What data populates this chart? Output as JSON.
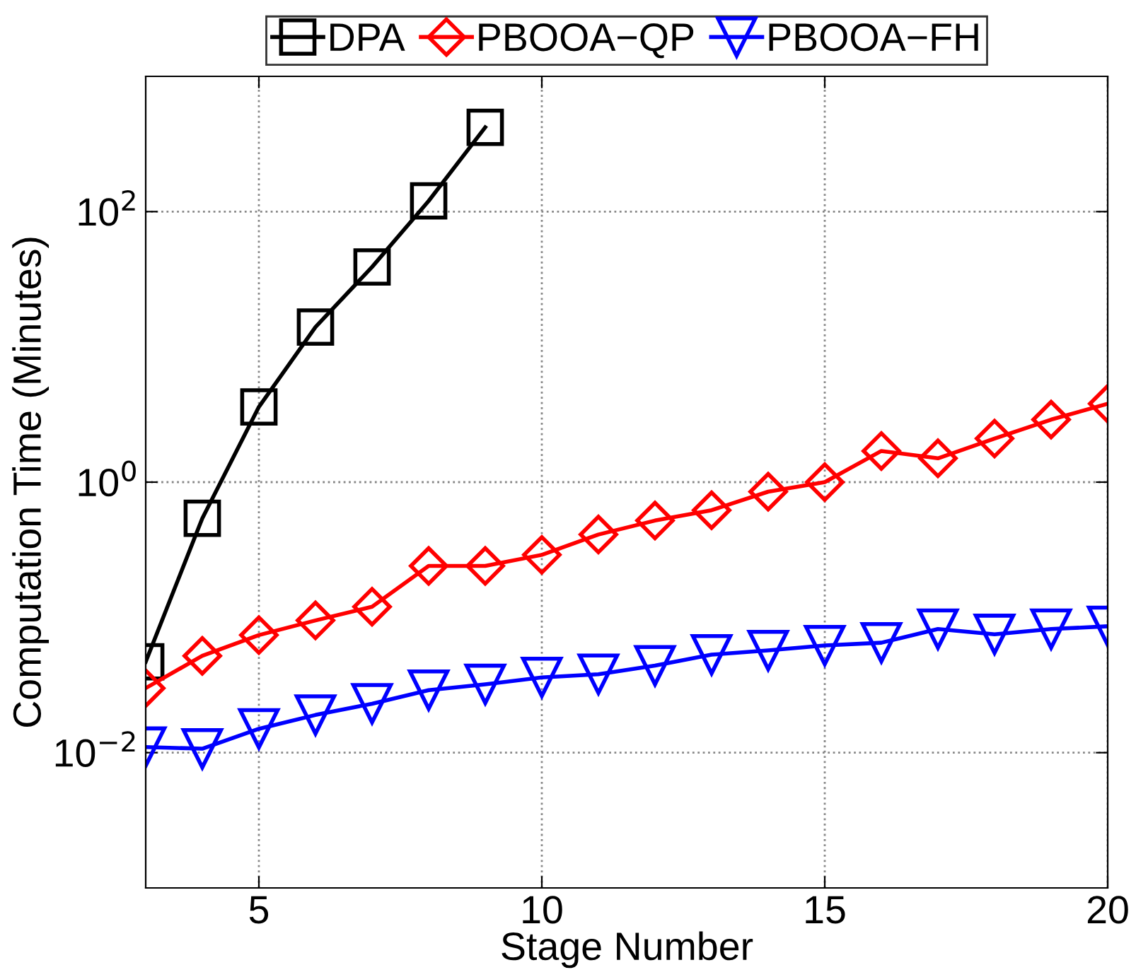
{
  "chart_data": {
    "type": "line",
    "xlabel": "Stage Number",
    "ylabel": "Computation Time (Minutes)",
    "x": [
      3,
      4,
      5,
      6,
      7,
      8,
      9,
      10,
      11,
      12,
      13,
      14,
      15,
      16,
      17,
      18,
      19,
      20
    ],
    "series": [
      {
        "name": "DPA",
        "color": "#000000",
        "marker": "square",
        "x": [
          3,
          4,
          5,
          6,
          7,
          8,
          9
        ],
        "values": [
          0.047,
          0.54,
          3.6,
          14,
          39,
          120,
          420
        ]
      },
      {
        "name": "PBOOA−QP",
        "color": "#ff0000",
        "marker": "diamond",
        "values": [
          0.03,
          0.052,
          0.074,
          0.095,
          0.12,
          0.24,
          0.24,
          0.29,
          0.41,
          0.52,
          0.62,
          0.85,
          1.0,
          1.7,
          1.5,
          2.1,
          2.9,
          3.8
        ]
      },
      {
        "name": "PBOOA−FH",
        "color": "#0000ff",
        "marker": "triangle",
        "values": [
          0.011,
          0.0107,
          0.015,
          0.019,
          0.023,
          0.029,
          0.032,
          0.036,
          0.038,
          0.044,
          0.053,
          0.057,
          0.062,
          0.065,
          0.082,
          0.075,
          0.082,
          0.086
        ]
      }
    ],
    "log": "y",
    "xlim": [
      3,
      20
    ],
    "xticks": [
      5,
      10,
      15,
      20
    ],
    "ylim": [
      0.001,
      1000
    ],
    "yticks": [
      {
        "value": 0.01,
        "label": "10$^{−2}$"
      },
      {
        "value": 1,
        "label": "10$^{0}$"
      },
      {
        "value": 100,
        "label": "10$^{2}$"
      }
    ],
    "grid": true,
    "legend": "top",
    "line_style": "solid"
  }
}
